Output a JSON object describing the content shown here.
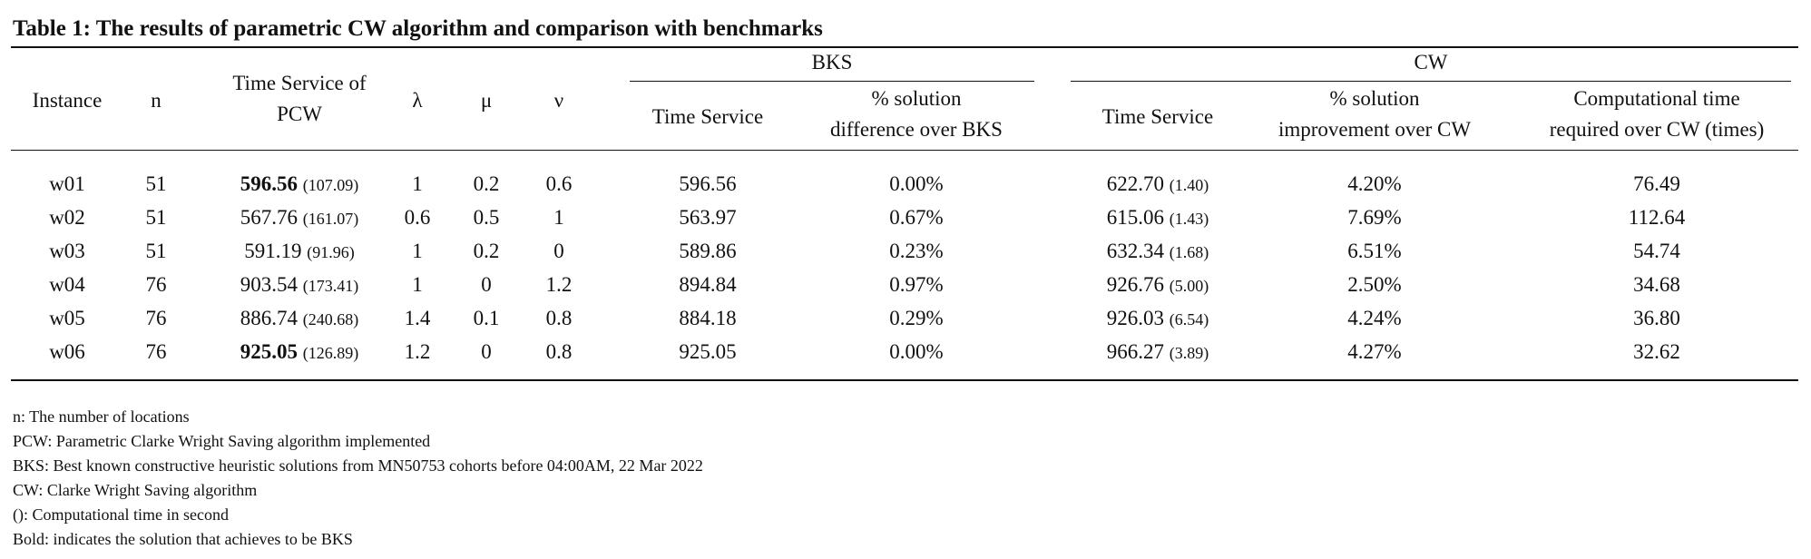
{
  "caption": "Table 1: The results of parametric CW algorithm and comparison with benchmarks",
  "groups": {
    "bks": "BKS",
    "cw": "CW"
  },
  "headers": {
    "instance": "Instance",
    "n": "n",
    "pcw_line1": "Time Service of",
    "pcw_line2": "PCW",
    "lambda": "λ",
    "mu": "μ",
    "nu": "ν",
    "bks_time": "Time Service",
    "bks_diff_line1": "% solution",
    "bks_diff_line2": "difference over BKS",
    "cw_time": "Time Service",
    "cw_impr_line1": "% solution",
    "cw_impr_line2": "improvement over CW",
    "cw_comp_line1": "Computational time",
    "cw_comp_line2": "required over CW (times)"
  },
  "rows": [
    {
      "instance": "w01",
      "n": "51",
      "pcw": "596.56",
      "pcw_time": "(107.09)",
      "pcw_bold": true,
      "lambda": "1",
      "mu": "0.2",
      "nu": "0.6",
      "bks_time": "596.56",
      "bks_diff": "0.00%",
      "cw_time": "622.70",
      "cw_time_s": "(1.40)",
      "cw_impr": "4.20%",
      "cw_comp": "76.49"
    },
    {
      "instance": "w02",
      "n": "51",
      "pcw": "567.76",
      "pcw_time": "(161.07)",
      "pcw_bold": false,
      "lambda": "0.6",
      "mu": "0.5",
      "nu": "1",
      "bks_time": "563.97",
      "bks_diff": "0.67%",
      "cw_time": "615.06",
      "cw_time_s": "(1.43)",
      "cw_impr": "7.69%",
      "cw_comp": "112.64"
    },
    {
      "instance": "w03",
      "n": "51",
      "pcw": "591.19",
      "pcw_time": "(91.96)",
      "pcw_bold": false,
      "lambda": "1",
      "mu": "0.2",
      "nu": "0",
      "bks_time": "589.86",
      "bks_diff": "0.23%",
      "cw_time": "632.34",
      "cw_time_s": "(1.68)",
      "cw_impr": "6.51%",
      "cw_comp": "54.74"
    },
    {
      "instance": "w04",
      "n": "76",
      "pcw": "903.54",
      "pcw_time": "(173.41)",
      "pcw_bold": false,
      "lambda": "1",
      "mu": "0",
      "nu": "1.2",
      "bks_time": "894.84",
      "bks_diff": "0.97%",
      "cw_time": "926.76",
      "cw_time_s": "(5.00)",
      "cw_impr": "2.50%",
      "cw_comp": "34.68"
    },
    {
      "instance": "w05",
      "n": "76",
      "pcw": "886.74",
      "pcw_time": "(240.68)",
      "pcw_bold": false,
      "lambda": "1.4",
      "mu": "0.1",
      "nu": "0.8",
      "bks_time": "884.18",
      "bks_diff": "0.29%",
      "cw_time": "926.03",
      "cw_time_s": "(6.54)",
      "cw_impr": "4.24%",
      "cw_comp": "36.80"
    },
    {
      "instance": "w06",
      "n": "76",
      "pcw": "925.05",
      "pcw_time": "(126.89)",
      "pcw_bold": true,
      "lambda": "1.2",
      "mu": "0",
      "nu": "0.8",
      "bks_time": "925.05",
      "bks_diff": "0.00%",
      "cw_time": "966.27",
      "cw_time_s": "(3.89)",
      "cw_impr": "4.27%",
      "cw_comp": "32.62"
    }
  ],
  "notes": [
    "n: The number of locations",
    "PCW: Parametric Clarke Wright Saving algorithm implemented",
    "BKS: Best known constructive heuristic solutions from MN50753 cohorts before 04:00AM, 22 Mar 2022",
    "CW: Clarke Wright Saving algorithm",
    "(): Computational time in second",
    "Bold: indicates the solution that achieves to be BKS"
  ]
}
